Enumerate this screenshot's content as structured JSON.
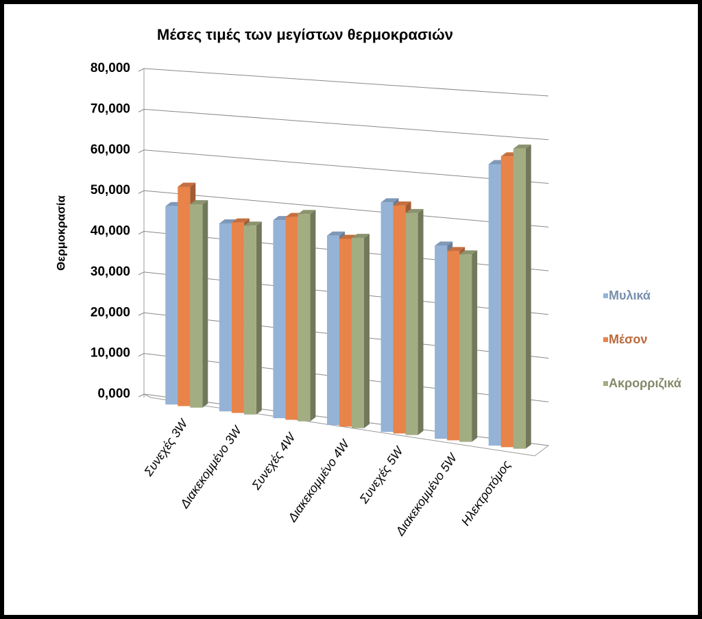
{
  "chart_data": {
    "type": "bar3d",
    "title": "Μέσες τιμές των μεγίστων θερμοκρασιών",
    "y_label": "Θερμοκρασία",
    "categories": [
      "Συνεχές 3W",
      "Διακεκομμένο 3W",
      "Συνεχές 4W",
      "Διακεκομμένο 4W",
      "Συνεχές 5W",
      "Διακεκομμένο 5W",
      "Ηλεκτροτόμος"
    ],
    "series": [
      {
        "name": "Μυλικά",
        "color": "#95b3d7",
        "values": [
          48.5,
          45.5,
          47.5,
          45,
          54,
          45,
          65
        ]
      },
      {
        "name": "Μέσον",
        "color": "#e8834a",
        "values": [
          53.5,
          46,
          48.5,
          44.5,
          53.5,
          44,
          67
        ]
      },
      {
        "name": "Ακρορριζικά",
        "color": "#a3ad82",
        "values": [
          49.5,
          45.5,
          49.5,
          45,
          52,
          43.5,
          69
        ]
      }
    ],
    "ylim": [
      0,
      80
    ],
    "yticks": [
      {
        "value": 0,
        "label": "0,000"
      },
      {
        "value": 10,
        "label": "10,000"
      },
      {
        "value": 20,
        "label": "20,000"
      },
      {
        "value": 30,
        "label": "30,000"
      },
      {
        "value": 40,
        "label": "40,000"
      },
      {
        "value": 50,
        "label": "50,000"
      },
      {
        "value": 60,
        "label": "60,000"
      },
      {
        "value": 70,
        "label": "70,000"
      },
      {
        "value": 80,
        "label": "80,000"
      }
    ],
    "grid": true,
    "legend": "right"
  }
}
